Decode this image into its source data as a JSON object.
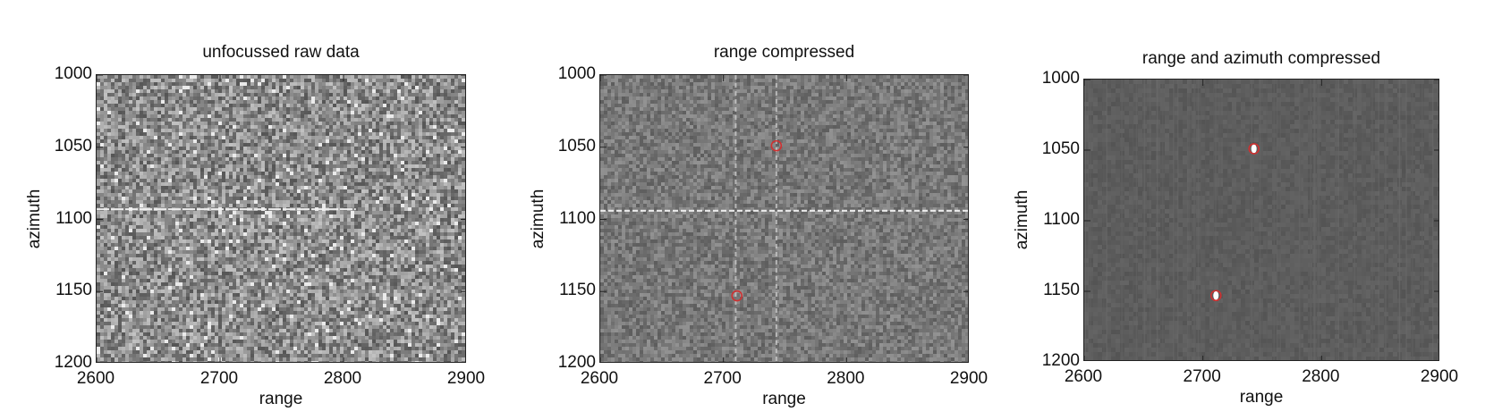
{
  "chart_data": [
    {
      "type": "heatmap",
      "title": "unfocussed raw data",
      "xlabel": "range",
      "ylabel": "azimuth",
      "xlim": [
        2600,
        2900
      ],
      "ylim": [
        1000,
        1200
      ],
      "y_reversed": true,
      "xticks": [
        "2600",
        "2700",
        "2800",
        "2900"
      ],
      "yticks": [
        "1000",
        "1050",
        "1100",
        "1150",
        "1200"
      ],
      "colormap": "gray",
      "background_level": "noisy",
      "features": [
        {
          "kind": "horizontal-line",
          "azimuth": 1093,
          "range_from": 2600,
          "range_to": 2810
        }
      ],
      "markers": []
    },
    {
      "type": "heatmap",
      "title": "range compressed",
      "xlabel": "range",
      "ylabel": "azimuth",
      "xlim": [
        2600,
        2900
      ],
      "ylim": [
        1000,
        1200
      ],
      "y_reversed": true,
      "xticks": [
        "2600",
        "2700",
        "2800",
        "2900"
      ],
      "yticks": [
        "1000",
        "1050",
        "1100",
        "1150",
        "1200"
      ],
      "colormap": "gray",
      "background_level": "medium",
      "features": [
        {
          "kind": "horizontal-line",
          "azimuth": 1094,
          "range_from": 2600,
          "range_to": 2900
        },
        {
          "kind": "vertical-line",
          "range": 2710,
          "azimuth_from": 1000,
          "azimuth_to": 1200
        },
        {
          "kind": "vertical-line",
          "range": 2743,
          "azimuth_from": 1000,
          "azimuth_to": 1200
        }
      ],
      "markers": [
        {
          "range": 2743,
          "azimuth": 1049,
          "color": "#d03030"
        },
        {
          "range": 2711,
          "azimuth": 1153,
          "color": "#d03030"
        }
      ]
    },
    {
      "type": "heatmap",
      "title": "range and azimuth compressed",
      "xlabel": "range",
      "ylabel": "azimuth",
      "xlim": [
        2600,
        2900
      ],
      "ylim": [
        1000,
        1200
      ],
      "y_reversed": true,
      "xticks": [
        "2600",
        "2700",
        "2800",
        "2900"
      ],
      "yticks": [
        "1000",
        "1050",
        "1100",
        "1150",
        "1200"
      ],
      "colormap": "gray",
      "background_level": "dark",
      "features": [
        {
          "kind": "point-target",
          "range": 2743,
          "azimuth": 1049
        },
        {
          "kind": "point-target",
          "range": 2711,
          "azimuth": 1153
        }
      ],
      "markers": [
        {
          "range": 2743,
          "azimuth": 1049,
          "color": "#d03030"
        },
        {
          "range": 2711,
          "azimuth": 1153,
          "color": "#d03030"
        }
      ]
    }
  ]
}
